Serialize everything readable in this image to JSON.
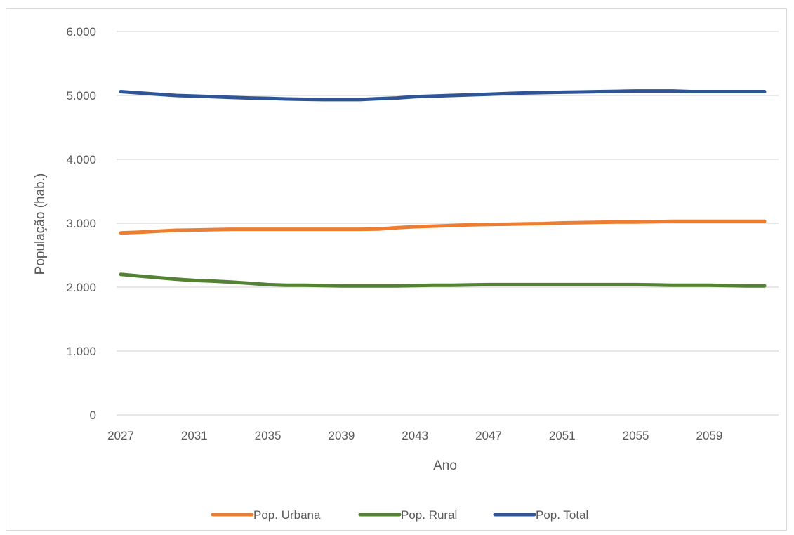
{
  "chart_data": {
    "type": "line",
    "title": "",
    "xlabel": "Ano",
    "ylabel": "População (hab.)",
    "ylim": [
      0,
      6000
    ],
    "yticks": [
      0,
      1000,
      2000,
      3000,
      4000,
      5000,
      6000
    ],
    "ytick_labels": [
      "0",
      "1.000",
      "2.000",
      "3.000",
      "4.000",
      "5.000",
      "6.000"
    ],
    "xtick_labels": [
      "2027",
      "2031",
      "2035",
      "2039",
      "2043",
      "2047",
      "2051",
      "2055",
      "2059"
    ],
    "x": [
      2027,
      2028,
      2029,
      2030,
      2031,
      2032,
      2033,
      2034,
      2035,
      2036,
      2037,
      2038,
      2039,
      2040,
      2041,
      2042,
      2043,
      2044,
      2045,
      2046,
      2047,
      2048,
      2049,
      2050,
      2051,
      2052,
      2053,
      2054,
      2055,
      2056,
      2057,
      2058,
      2059,
      2060,
      2061,
      2062
    ],
    "grid": "horizontal",
    "legend_position": "bottom",
    "series": [
      {
        "name": "Pop. Urbana",
        "color": "#ed7d31",
        "values": [
          2850,
          2860,
          2875,
          2890,
          2895,
          2900,
          2905,
          2905,
          2905,
          2905,
          2905,
          2905,
          2905,
          2905,
          2910,
          2930,
          2945,
          2955,
          2965,
          2975,
          2980,
          2985,
          2990,
          2995,
          3005,
          3010,
          3015,
          3020,
          3020,
          3025,
          3030,
          3030,
          3030,
          3030,
          3030,
          3030
        ]
      },
      {
        "name": "Pop. Rural",
        "color": "#548235",
        "values": [
          2200,
          2175,
          2150,
          2125,
          2105,
          2095,
          2080,
          2060,
          2040,
          2030,
          2030,
          2025,
          2020,
          2020,
          2020,
          2020,
          2025,
          2030,
          2030,
          2035,
          2040,
          2040,
          2040,
          2040,
          2040,
          2040,
          2040,
          2040,
          2040,
          2035,
          2030,
          2030,
          2030,
          2025,
          2020,
          2020
        ]
      },
      {
        "name": "Pop. Total",
        "color": "#2f5597",
        "values": [
          5060,
          5040,
          5020,
          5000,
          4990,
          4980,
          4970,
          4960,
          4955,
          4945,
          4940,
          4935,
          4935,
          4935,
          4950,
          4960,
          4980,
          4990,
          5000,
          5010,
          5020,
          5030,
          5040,
          5045,
          5050,
          5055,
          5060,
          5065,
          5070,
          5070,
          5070,
          5060,
          5060,
          5060,
          5060,
          5060
        ]
      }
    ]
  }
}
